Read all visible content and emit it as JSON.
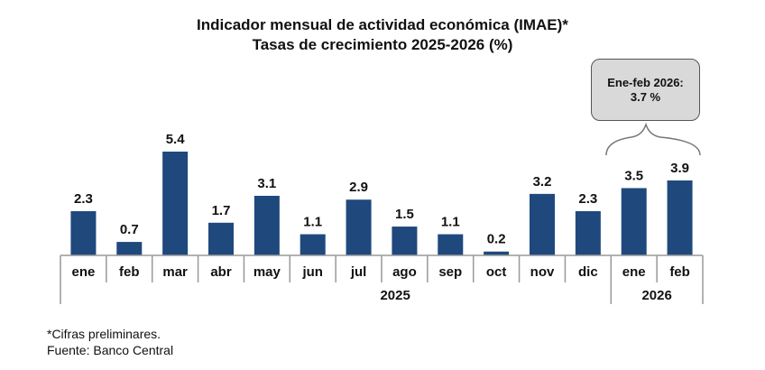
{
  "chart_data": {
    "type": "bar",
    "title": "Indicador mensual de actividad económica (IMAE)*",
    "subtitle": "Tasas de crecimiento 2025-2026 (%)",
    "categories": [
      "ene",
      "feb",
      "mar",
      "abr",
      "may",
      "jun",
      "jul",
      "ago",
      "sep",
      "oct",
      "nov",
      "dic",
      "ene",
      "feb"
    ],
    "groups": [
      {
        "label": "2025",
        "count": 12
      },
      {
        "label": "2026",
        "count": 2
      }
    ],
    "values": [
      2.3,
      0.7,
      5.4,
      1.7,
      3.1,
      1.1,
      2.9,
      1.5,
      1.1,
      0.2,
      3.2,
      2.3,
      3.5,
      3.9
    ],
    "value_labels": [
      "2.3",
      "0.7",
      "5.4",
      "1.7",
      "3.1",
      "1.1",
      "2.9",
      "1.5",
      "1.1",
      "0.2",
      "3.2",
      "2.3",
      "3.5",
      "3.9"
    ],
    "bar_color": "#1f497d",
    "ylim": [
      0,
      5.4
    ],
    "grid": false,
    "annotation": {
      "line1": "Ene-feb 2026:",
      "line2": "3.7 %",
      "fill": "#d9d9d9"
    }
  },
  "footnotes": {
    "note": "*Cifras preliminares.",
    "source": "Fuente: Banco Central"
  }
}
